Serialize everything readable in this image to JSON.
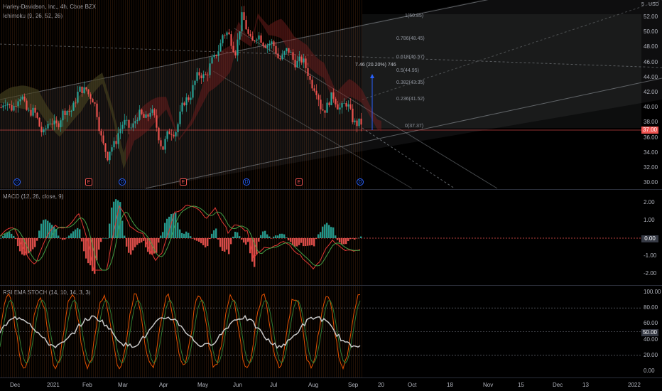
{
  "header": {
    "symbol_line": "Harley-Davidson, Inc., 4h, Cboe BZX",
    "currency": "USD"
  },
  "indicators": {
    "ichimoku": "Ichimoku (9, 26, 52, 26)",
    "macd": "MACD (12, 26, close, 9)",
    "stoch": "RSI EMA STOCH (14, 10, 14, 3, 3)"
  },
  "price_axis": {
    "ticks": [
      "52.00",
      "50.00",
      "48.00",
      "46.00",
      "44.00",
      "42.00",
      "40.00",
      "38.00",
      "36.00",
      "34.00",
      "32.00",
      "30.00"
    ],
    "top_partial": "5",
    "last_price": "37.00"
  },
  "macd_axis": {
    "ticks": [
      "2.00",
      "1.00",
      "0.00",
      "-1.00",
      "-2.00"
    ],
    "current": "0.00"
  },
  "stoch_axis": {
    "ticks": [
      "100.00",
      "80.00",
      "60.00",
      "40.00",
      "20.00",
      "0.00"
    ],
    "current": "50.00"
  },
  "time_axis": [
    "Dec",
    "2021",
    "Feb",
    "Mar",
    "Apr",
    "May",
    "Jun",
    "Jul",
    "Aug",
    "Sep",
    "20",
    "Oct",
    "18",
    "Nov",
    "15",
    "Dec",
    "13",
    "2022"
  ],
  "fib_levels": [
    {
      "ratio": "1(50.85)"
    },
    {
      "ratio": "0.786(48.45)"
    },
    {
      "ratio": "0.618(46.57)"
    },
    {
      "ratio": "0.5(44.95)"
    },
    {
      "ratio": "0.382(43.35)"
    },
    {
      "ratio": "0.236(41.52)"
    },
    {
      "ratio": "0(37.37)"
    }
  ],
  "measure": {
    "label": "7.46 (20.20%) 746"
  },
  "event_markers": [
    {
      "glyph": "D",
      "type": "dividend"
    },
    {
      "glyph": "E",
      "type": "earnings"
    },
    {
      "glyph": "D",
      "type": "dividend"
    },
    {
      "glyph": "E",
      "type": "earnings"
    },
    {
      "glyph": "D",
      "type": "dividend"
    },
    {
      "glyph": "E",
      "type": "earnings"
    },
    {
      "glyph": "D",
      "type": "dividend"
    }
  ],
  "colors": {
    "bull": "#26a69a",
    "bear": "#ef5350",
    "background": "#000000",
    "grid": "#2a2e39",
    "macd_line": "#e53935",
    "signal_line": "#43a047",
    "stoch_k": "#e65100",
    "stoch_d": "#2e7d32",
    "rsi": "#c8c8c8"
  }
}
